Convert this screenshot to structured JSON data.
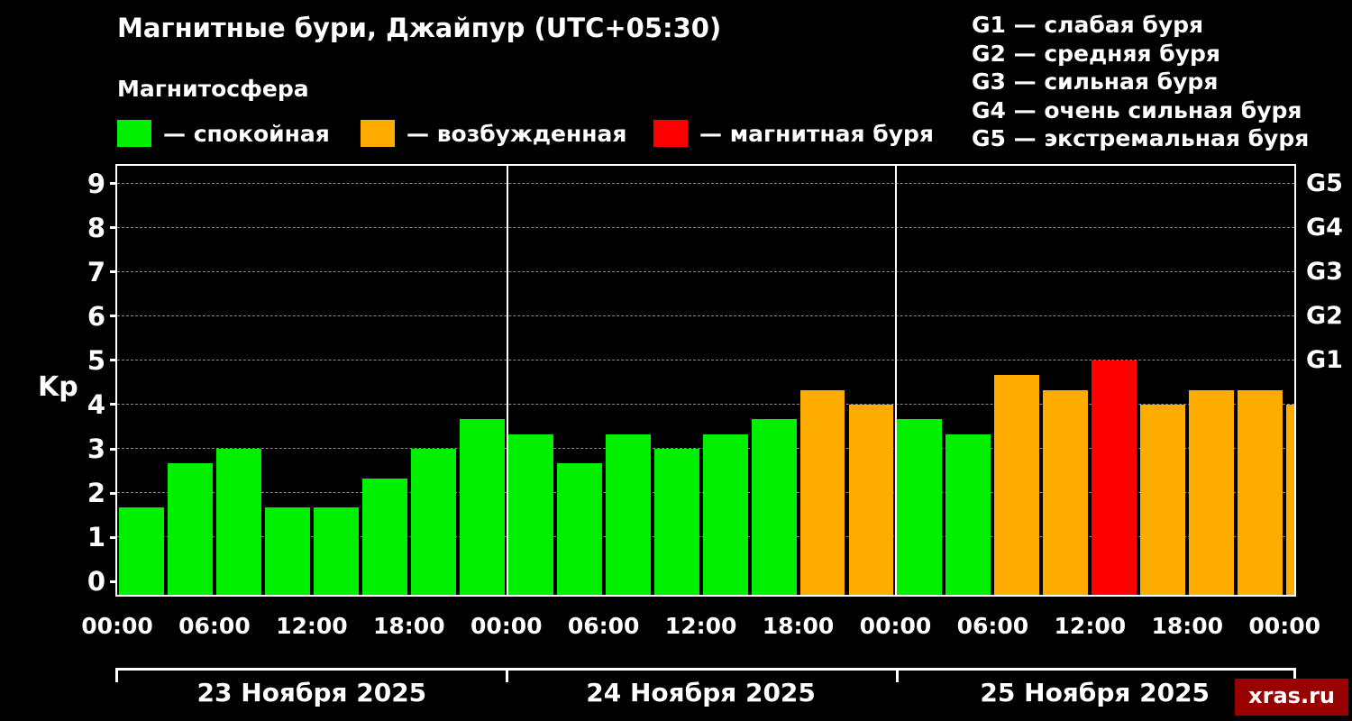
{
  "title": "Магнитные бури, Джайпур (UTC+05:30)",
  "subtitle": "Магнитосфера",
  "watermark": "xras.ru",
  "legend": {
    "items": [
      {
        "label": "— спокойная",
        "state": "calm",
        "color": "#00f000"
      },
      {
        "label": "— возбужденная",
        "state": "excited",
        "color": "#ffac00"
      },
      {
        "label": "— магнитная буря",
        "state": "storm",
        "color": "#ff0000"
      }
    ]
  },
  "g_legend": [
    "G1 — слабая буря",
    "G2 — средняя буря",
    "G3 — сильная буря",
    "G4 — очень сильная буря",
    "G5 — экстремальная буря"
  ],
  "chart_data": {
    "type": "bar",
    "title": "Магнитные бури, Джайпур (UTC+05:30)",
    "xlabel": "",
    "ylabel": "Kp",
    "ylim": [
      0,
      9
    ],
    "bar_interval_hours": 3,
    "grid": "dashed-horizontal",
    "y_ticks": [
      0,
      1,
      2,
      3,
      4,
      5,
      6,
      7,
      8,
      9
    ],
    "right_labels": [
      {
        "label": "G1",
        "kp": 5
      },
      {
        "label": "G2",
        "kp": 6
      },
      {
        "label": "G3",
        "kp": 7
      },
      {
        "label": "G4",
        "kp": 8
      },
      {
        "label": "G5",
        "kp": 9
      }
    ],
    "x_ticks": [
      {
        "hour": 0,
        "label": "00:00"
      },
      {
        "hour": 6,
        "label": "06:00"
      },
      {
        "hour": 12,
        "label": "12:00"
      },
      {
        "hour": 18,
        "label": "18:00"
      },
      {
        "hour": 24,
        "label": "00:00"
      },
      {
        "hour": 30,
        "label": "06:00"
      },
      {
        "hour": 36,
        "label": "12:00"
      },
      {
        "hour": 42,
        "label": "18:00"
      },
      {
        "hour": 48,
        "label": "00:00"
      },
      {
        "hour": 54,
        "label": "06:00"
      },
      {
        "hour": 60,
        "label": "12:00"
      },
      {
        "hour": 66,
        "label": "18:00"
      },
      {
        "hour": 72,
        "label": "00:00"
      }
    ],
    "day_boundaries": [
      24,
      48
    ],
    "dates": [
      "23 Ноября 2025",
      "24 Ноября 2025",
      "25 Ноября 2025"
    ],
    "colors": {
      "calm": "#00f000",
      "excited": "#ffac00",
      "storm": "#ff0000"
    },
    "bars": [
      {
        "start_hour": 0,
        "kp": 1.67,
        "state": "calm"
      },
      {
        "start_hour": 3,
        "kp": 2.67,
        "state": "calm"
      },
      {
        "start_hour": 6,
        "kp": 3.0,
        "state": "calm"
      },
      {
        "start_hour": 9,
        "kp": 1.67,
        "state": "calm"
      },
      {
        "start_hour": 12,
        "kp": 1.67,
        "state": "calm"
      },
      {
        "start_hour": 15,
        "kp": 2.33,
        "state": "calm"
      },
      {
        "start_hour": 18,
        "kp": 3.0,
        "state": "calm"
      },
      {
        "start_hour": 21,
        "kp": 3.67,
        "state": "calm"
      },
      {
        "start_hour": 24,
        "kp": 3.33,
        "state": "calm"
      },
      {
        "start_hour": 27,
        "kp": 2.67,
        "state": "calm"
      },
      {
        "start_hour": 30,
        "kp": 3.33,
        "state": "calm"
      },
      {
        "start_hour": 33,
        "kp": 3.0,
        "state": "calm"
      },
      {
        "start_hour": 36,
        "kp": 3.33,
        "state": "calm"
      },
      {
        "start_hour": 39,
        "kp": 3.67,
        "state": "calm"
      },
      {
        "start_hour": 42,
        "kp": 4.33,
        "state": "excited"
      },
      {
        "start_hour": 45,
        "kp": 4.0,
        "state": "excited"
      },
      {
        "start_hour": 48,
        "kp": 3.67,
        "state": "calm"
      },
      {
        "start_hour": 51,
        "kp": 3.33,
        "state": "calm"
      },
      {
        "start_hour": 54,
        "kp": 4.67,
        "state": "excited"
      },
      {
        "start_hour": 57,
        "kp": 4.33,
        "state": "excited"
      },
      {
        "start_hour": 60,
        "kp": 5.0,
        "state": "storm"
      },
      {
        "start_hour": 63,
        "kp": 4.0,
        "state": "excited"
      },
      {
        "start_hour": 66,
        "kp": 4.33,
        "state": "excited"
      },
      {
        "start_hour": 69,
        "kp": 4.33,
        "state": "excited"
      },
      {
        "start_hour": 72,
        "kp": 4.0,
        "state": "excited"
      }
    ]
  }
}
